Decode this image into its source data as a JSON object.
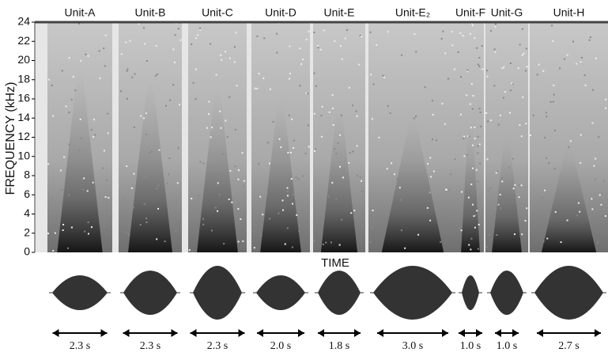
{
  "chart_data": {
    "type": "spectrogram",
    "ylabel": "FREQUENCY (kHz)",
    "xlabel": "TIME",
    "ylim": [
      0,
      24
    ],
    "yticks": [
      0,
      2,
      4,
      6,
      8,
      10,
      12,
      14,
      16,
      18,
      20,
      22,
      24
    ],
    "categories": [
      "Unit-A",
      "Unit-B",
      "Unit-C",
      "Unit-D",
      "Unit-E",
      "Unit-E₂",
      "Unit-F",
      "Unit-G",
      "Unit-H"
    ],
    "values": [
      2.3,
      2.3,
      2.3,
      2.0,
      1.8,
      3.0,
      1.0,
      1.0,
      2.7
    ],
    "value_labels": [
      "2.3 s",
      "2.3 s",
      "2.3 s",
      "2.0 s",
      "1.8 s",
      "3.0 s",
      "1.0 s",
      "1.0 s",
      "2.7 s"
    ]
  }
}
